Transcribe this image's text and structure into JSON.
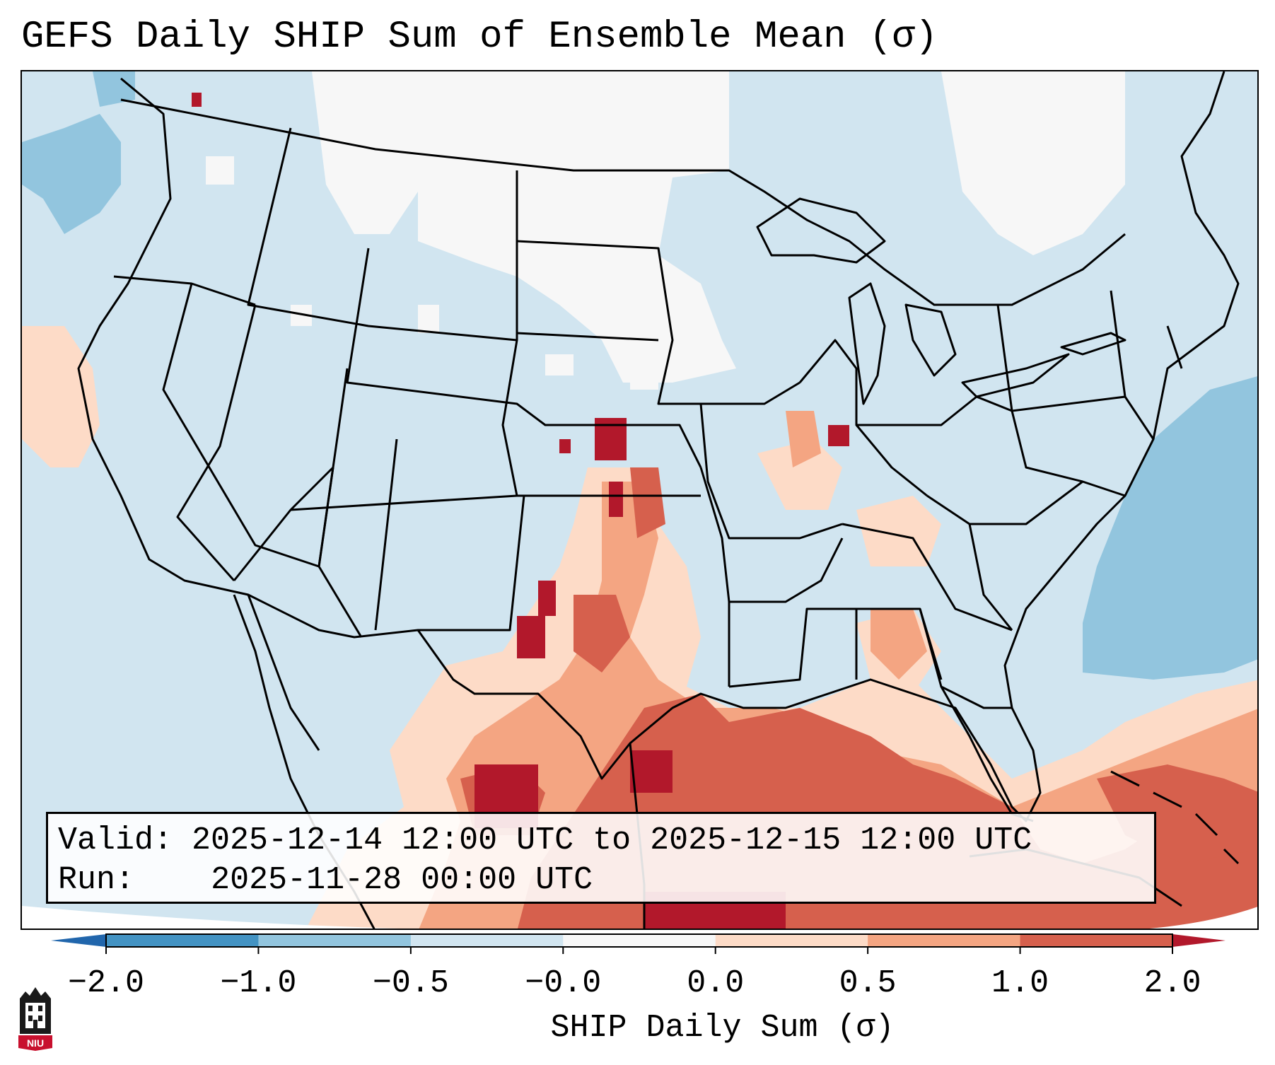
{
  "title": "GEFS Daily SHIP Sum of Ensemble Mean (σ)",
  "info": {
    "valid_label": "Valid:",
    "valid_value": "2025-12-14 12:00 UTC to 2025-12-15 12:00 UTC",
    "run_label": "Run:",
    "run_value": "2025-11-28 00:00 UTC"
  },
  "colorbar": {
    "label": "SHIP Daily Sum (σ)",
    "ticks": [
      "−2.0",
      "−1.0",
      "−0.5",
      "−0.0",
      "0.0",
      "0.5",
      "1.0",
      "2.0"
    ],
    "bin_colors": [
      "#4393c3",
      "#92c5de",
      "#d1e5f0",
      "#f7f7f7",
      "#fddbc7",
      "#f4a582",
      "#d6604d",
      "#b2182b"
    ],
    "extend_low_color": "#2166ac",
    "extend_high_color": "#b2182b"
  },
  "map": {
    "background_color": "#d1e5f0",
    "region": "Continental United States"
  },
  "logo": {
    "text": "NIU",
    "color": "#c8102e"
  }
}
